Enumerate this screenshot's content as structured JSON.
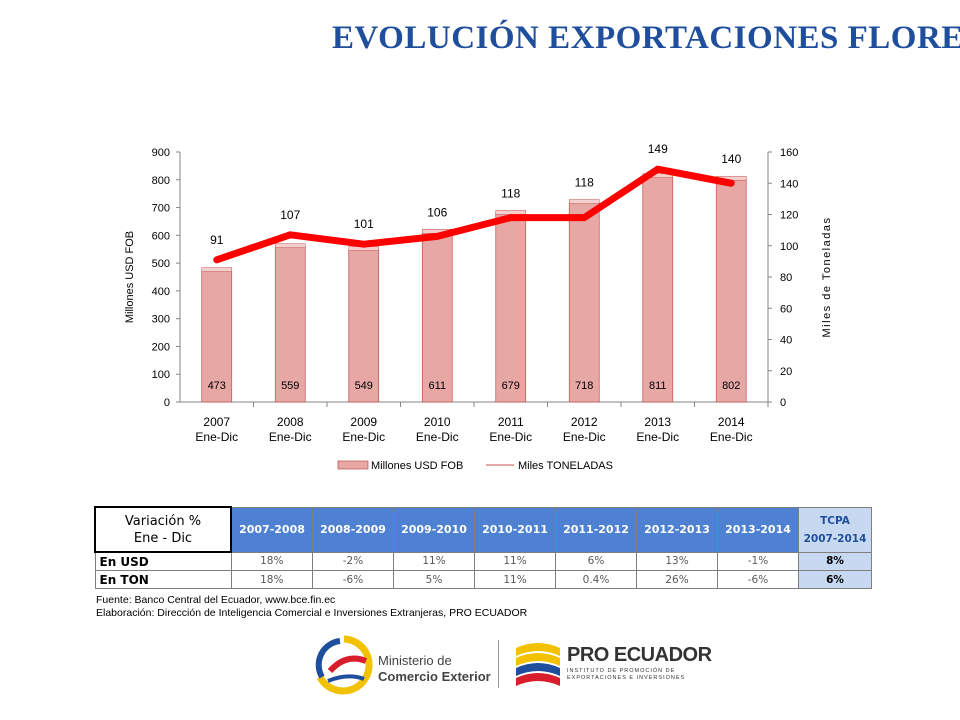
{
  "title": "EVOLUCIÓN EXPORTACIONES FLORES",
  "chart_data": {
    "type": "bar",
    "categories": [
      [
        "2007",
        "Ene-Dic"
      ],
      [
        "2008",
        "Ene-Dic"
      ],
      [
        "2009",
        "Ene-Dic"
      ],
      [
        "2010",
        "Ene-Dic"
      ],
      [
        "2011",
        "Ene-Dic"
      ],
      [
        "2012",
        "Ene-Dic"
      ],
      [
        "2013",
        "Ene-Dic"
      ],
      [
        "2014",
        "Ene-Dic"
      ]
    ],
    "series": [
      {
        "name": "Millones USD FOB",
        "type": "bar",
        "axis": "left",
        "values": [
          473,
          559,
          549,
          611,
          679,
          718,
          811,
          802
        ],
        "color": "#e6a7a5"
      },
      {
        "name": "Miles TONELADAS",
        "type": "line",
        "axis": "right",
        "values": [
          91,
          107,
          101,
          106,
          118,
          118,
          149,
          140
        ],
        "color": "#ff0000"
      }
    ],
    "ylabel": "Millones USD FOB",
    "y2label": "Miles de Toneladas",
    "ylim": [
      0,
      900
    ],
    "y2lim": [
      0,
      160
    ],
    "yticks": [
      "0",
      "100",
      "200",
      "300",
      "400",
      "500",
      "600",
      "700",
      "800",
      "900"
    ],
    "y2ticks": [
      "0",
      "20",
      "40",
      "60",
      "80",
      "100",
      "120",
      "140",
      "160"
    ],
    "legend_position": "bottom"
  },
  "table": {
    "corner": [
      "Variación %",
      "Ene - Dic"
    ],
    "periods": [
      "2007-2008",
      "2008-2009",
      "2009-2010",
      "2010-2011",
      "2011-2012",
      "2012-2013",
      "2013-2014"
    ],
    "tcpa_header": [
      "TCPA",
      "2007-2014"
    ],
    "rows": [
      {
        "label": "En USD",
        "values": [
          "18%",
          "-2%",
          "11%",
          "11%",
          "6%",
          "13%",
          "-1%"
        ],
        "tcpa": "8%"
      },
      {
        "label": "En TON",
        "values": [
          "18%",
          "-6%",
          "5%",
          "11%",
          "0.4%",
          "26%",
          "-6%"
        ],
        "tcpa": "6%"
      }
    ]
  },
  "source": {
    "line1": "Fuente: Banco Central del Ecuador, www.bce.fin.ec",
    "line2": "Elaboración: Dirección de Inteligencia Comercial e Inversiones Extranjeras, PRO ECUADOR"
  },
  "logos": {
    "ministerio": [
      "Ministerio de",
      "Comercio Exterior"
    ],
    "proecuador": "PRO ECUADOR",
    "proecuador_sub": [
      "INSTITUTO DE PROMOCIÓN DE",
      "EXPORTACIONES E INVERSIONES"
    ]
  }
}
